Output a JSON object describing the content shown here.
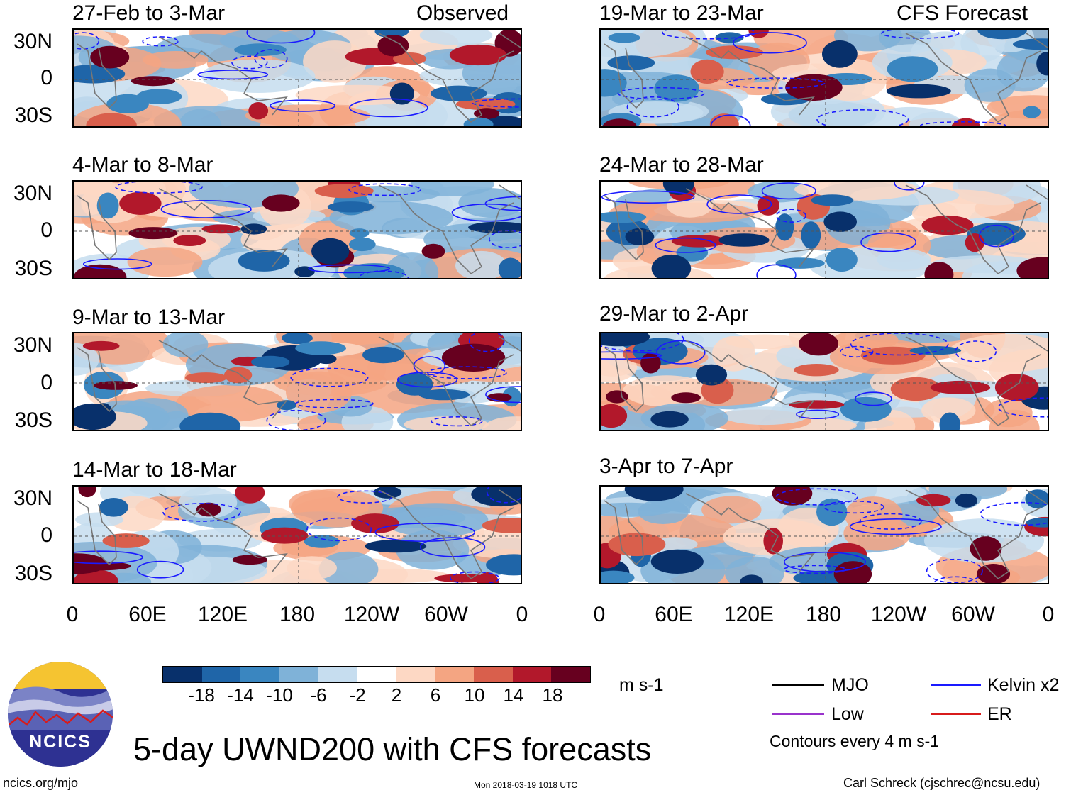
{
  "colors": {
    "strong_neg": "#08306b",
    "neg2": "#1f65a8",
    "neg3": "#3a86c0",
    "neg4": "#7fb2d8",
    "neg5": "#c6ddef",
    "neutral": "#ffffff",
    "pos5": "#fdd8c4",
    "pos4": "#f4a582",
    "pos3": "#d95f4c",
    "pos2": "#b2182b",
    "strong_pos": "#67001f",
    "kelvin": "#1a1aff",
    "mjo": "#000000",
    "low": "#9932cc",
    "er": "#d81b1b",
    "coast": "#777777"
  },
  "chart_data": {
    "type": "heatmap",
    "title": "5-day UWND200 with CFS forecasts",
    "variable": "UWND200",
    "units": "m s-1",
    "contour_interval": "Contours every 4 m s-1",
    "x_ticks": [
      "0",
      "60E",
      "120E",
      "180",
      "120W",
      "60W",
      "0"
    ],
    "y_ticks": [
      "30N",
      "0",
      "30S"
    ],
    "colorbar_ticks": [
      "-18",
      "-14",
      "-10",
      "-6",
      "-2",
      "2",
      "6",
      "10",
      "14",
      "18"
    ],
    "left_column_label": "Observed",
    "right_column_label": "CFS Forecast",
    "panels": [
      {
        "period": "27-Feb to 3-Mar",
        "source": "Observed",
        "column": "left"
      },
      {
        "period": "4-Mar to 8-Mar",
        "source": "Observed",
        "column": "left"
      },
      {
        "period": "9-Mar to 13-Mar",
        "source": "Observed",
        "column": "left"
      },
      {
        "period": "14-Mar to 18-Mar",
        "source": "Observed",
        "column": "left"
      },
      {
        "period": "19-Mar to 23-Mar",
        "source": "CFS Forecast",
        "column": "right"
      },
      {
        "period": "24-Mar to 28-Mar",
        "source": "CFS Forecast",
        "column": "right"
      },
      {
        "period": "29-Mar to 2-Apr",
        "source": "CFS Forecast",
        "column": "right"
      },
      {
        "period": "3-Apr to 7-Apr",
        "source": "CFS Forecast",
        "column": "right"
      }
    ],
    "legend": [
      {
        "name": "MJO",
        "color": "#000000"
      },
      {
        "name": "Kelvin x2",
        "color": "#1a1aff"
      },
      {
        "name": "Low",
        "color": "#9932cc"
      },
      {
        "name": "ER",
        "color": "#d81b1b"
      }
    ]
  },
  "footer": {
    "logo_text": "NCICS",
    "website": "ncics.org/mjo",
    "timestamp": "Mon 2018-03-19 1018 UTC",
    "author": "Carl Schreck (cjschrec@ncsu.edu)"
  }
}
